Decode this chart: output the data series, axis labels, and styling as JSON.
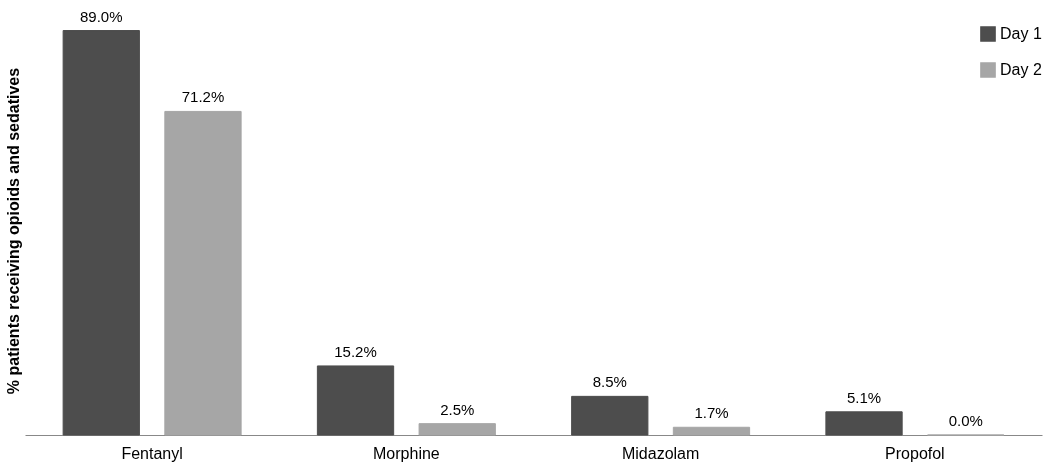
{
  "chart_data": {
    "type": "bar",
    "ylabel": "% patients receiving opioids and sedatives",
    "categories": [
      "Fentanyl",
      "Morphine",
      "Midazolam",
      "Propofol"
    ],
    "series": [
      {
        "name": "Day 1",
        "color": "#4d4d4d",
        "values": [
          89.0,
          15.2,
          8.5,
          5.1
        ],
        "value_labels": [
          "89.0%",
          "15.2%",
          "8.5%",
          "5.1%"
        ]
      },
      {
        "name": "Day 2",
        "color": "#a6a6a6",
        "values": [
          71.2,
          2.5,
          1.7,
          0.0
        ],
        "value_labels": [
          "71.2%",
          "2.5%",
          "1.7%",
          "0.0%"
        ]
      }
    ],
    "legend": "top right",
    "grid": false,
    "tick_labels": "x"
  }
}
